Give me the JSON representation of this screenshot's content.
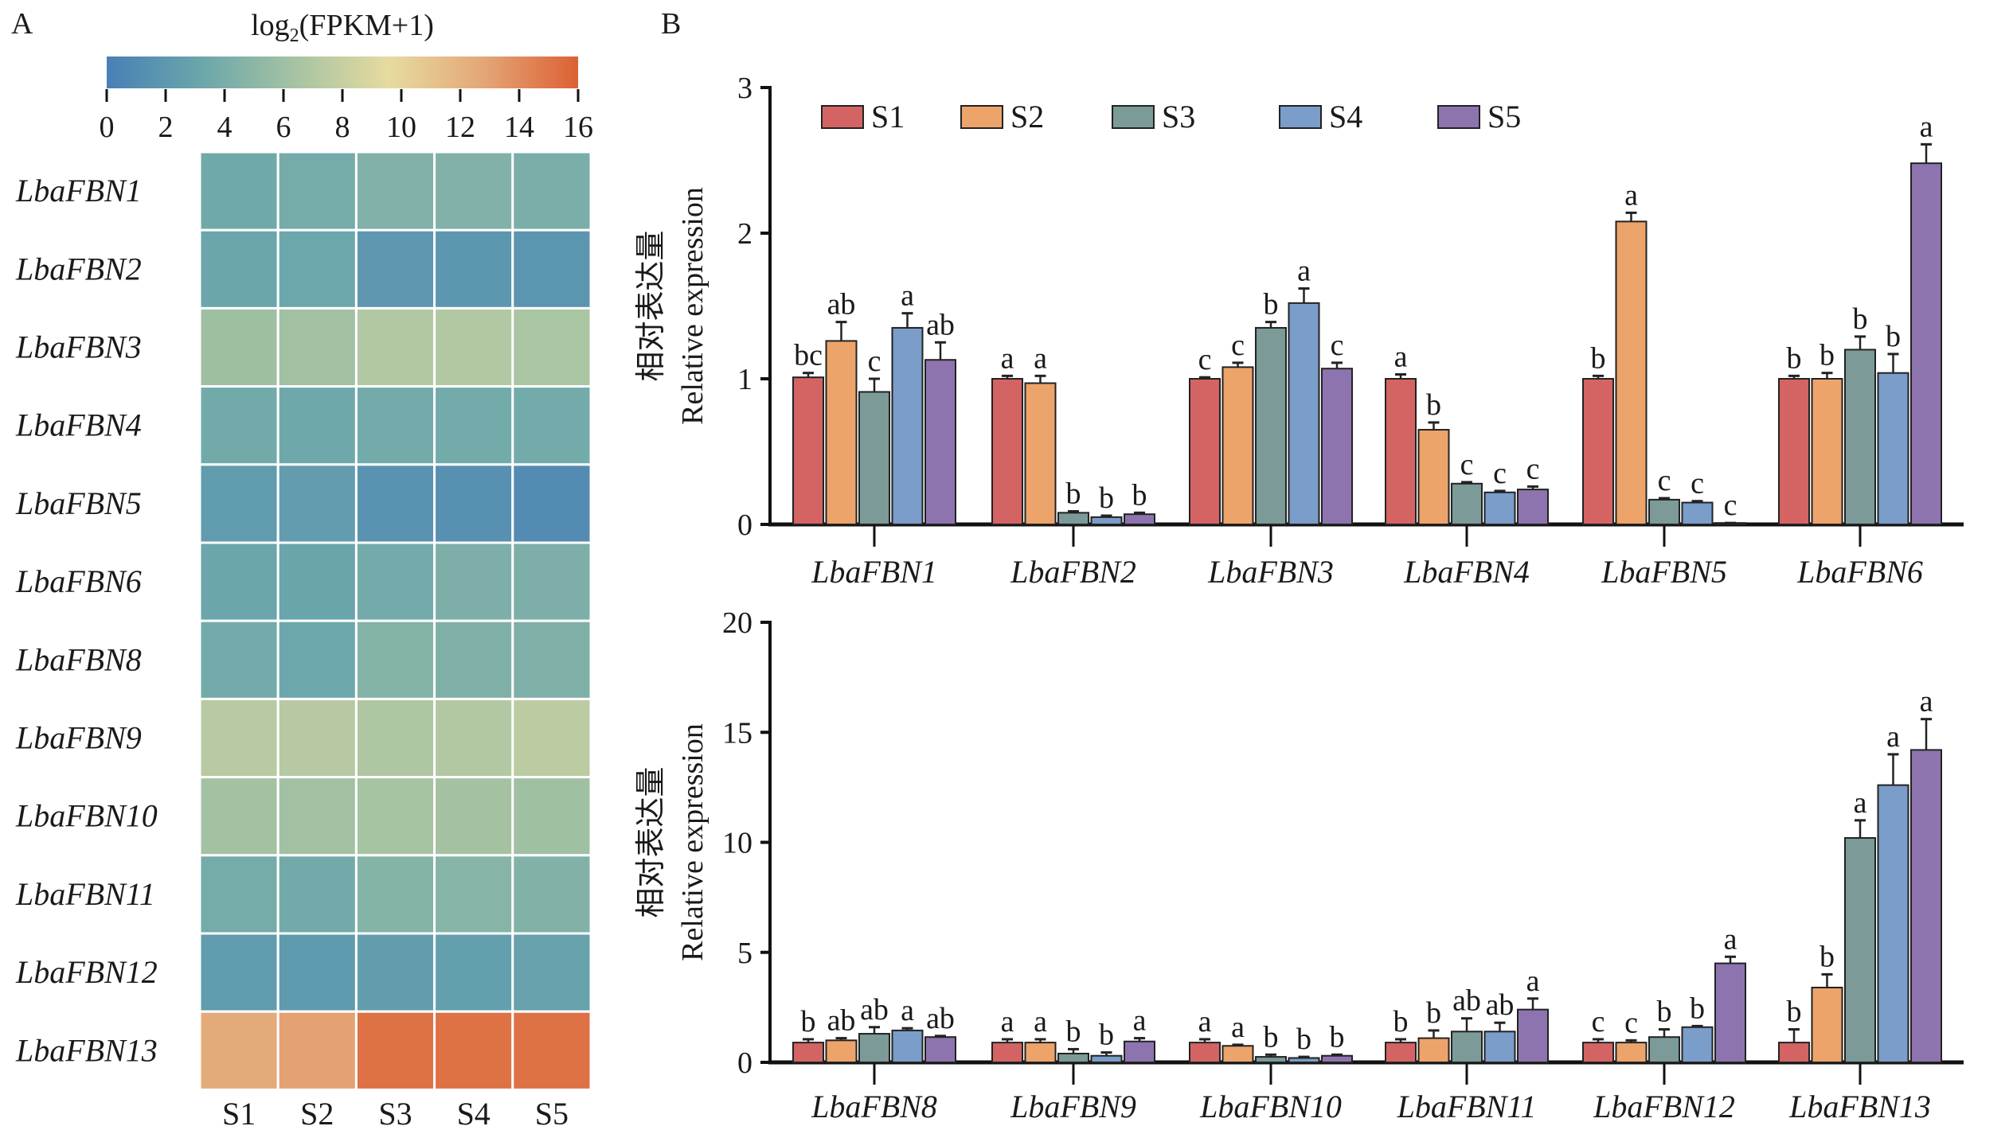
{
  "panel_a": {
    "label": "A",
    "chart_data": {
      "type": "heatmap",
      "colorbar_title": "log2(FPKM+1)",
      "colorbar_title_parts": {
        "pre": "log",
        "sub": "2",
        "post": "(FPKM+1)"
      },
      "colorbar_range": [
        0,
        16
      ],
      "colorbar_ticks": [
        "0",
        "2",
        "4",
        "6",
        "8",
        "10",
        "12",
        "14",
        "16"
      ],
      "colormap": [
        "#4a7fb6",
        "#6aa6ab",
        "#a6c3a2",
        "#e7dba0",
        "#e4a676",
        "#dc6034"
      ],
      "rows": [
        "LbaFBN1",
        "LbaFBN2",
        "LbaFBN3",
        "LbaFBN4",
        "LbaFBN5",
        "LbaFBN6",
        "LbaFBN8",
        "LbaFBN9",
        "LbaFBN10",
        "LbaFBN11",
        "LbaFBN12",
        "LbaFBN13"
      ],
      "columns": [
        "S1",
        "S2",
        "S3",
        "S4",
        "S5"
      ],
      "values": [
        [
          3.5,
          3.8,
          4.4,
          4.4,
          4.1
        ],
        [
          3.2,
          3.3,
          2.0,
          1.9,
          1.8
        ],
        [
          6.0,
          6.2,
          7.0,
          7.0,
          6.6
        ],
        [
          3.6,
          3.4,
          3.7,
          3.7,
          3.7
        ],
        [
          2.3,
          2.4,
          1.6,
          1.4,
          1.0
        ],
        [
          3.2,
          3.1,
          3.7,
          4.2,
          4.2
        ],
        [
          3.7,
          3.3,
          4.6,
          4.3,
          4.3
        ],
        [
          7.3,
          7.2,
          6.8,
          7.0,
          7.5
        ],
        [
          6.3,
          6.2,
          6.4,
          6.3,
          6.1
        ],
        [
          3.8,
          3.6,
          4.6,
          4.7,
          4.5
        ],
        [
          2.3,
          2.2,
          2.5,
          2.6,
          2.8
        ],
        [
          12.5,
          13.0,
          15.2,
          15.2,
          15.2
        ]
      ]
    }
  },
  "panel_b": {
    "label": "B",
    "legend": [
      {
        "name": "S1",
        "color": "#d46464"
      },
      {
        "name": "S2",
        "color": "#eda46a"
      },
      {
        "name": "S3",
        "color": "#7b9a98"
      },
      {
        "name": "S4",
        "color": "#7a9dc9"
      },
      {
        "name": "S5",
        "color": "#8d74ae"
      }
    ],
    "chart_data": [
      {
        "type": "bar",
        "ylabel_cn": "相对表达量",
        "ylabel": "Relative expression",
        "ylim": [
          0,
          3
        ],
        "yticks": [
          "0",
          "1",
          "2",
          "3"
        ],
        "categories": [
          "LbaFBN1",
          "LbaFBN2",
          "LbaFBN3",
          "LbaFBN4",
          "LbaFBN5",
          "LbaFBN6"
        ],
        "series": [
          {
            "name": "S1",
            "values": [
              1.01,
              1.0,
              1.0,
              1.0,
              1.0,
              1.0
            ],
            "errors": [
              0.03,
              0.02,
              0.01,
              0.03,
              0.02,
              0.02
            ],
            "letters": [
              "bc",
              "a",
              "c",
              "a",
              "b",
              "b"
            ]
          },
          {
            "name": "S2",
            "values": [
              1.26,
              0.97,
              1.08,
              0.65,
              2.08,
              1.0
            ],
            "errors": [
              0.13,
              0.05,
              0.03,
              0.05,
              0.06,
              0.04
            ],
            "letters": [
              "ab",
              "a",
              "c",
              "b",
              "a",
              "b"
            ]
          },
          {
            "name": "S3",
            "values": [
              0.91,
              0.08,
              1.35,
              0.28,
              0.17,
              1.2
            ],
            "errors": [
              0.09,
              0.01,
              0.04,
              0.01,
              0.01,
              0.09
            ],
            "letters": [
              "c",
              "b",
              "b",
              "c",
              "c",
              "b"
            ]
          },
          {
            "name": "S4",
            "values": [
              1.35,
              0.05,
              1.52,
              0.22,
              0.15,
              1.04
            ],
            "errors": [
              0.1,
              0.01,
              0.1,
              0.01,
              0.01,
              0.13
            ],
            "letters": [
              "a",
              "b",
              "a",
              "c",
              "c",
              "b"
            ]
          },
          {
            "name": "S5",
            "values": [
              1.13,
              0.07,
              1.07,
              0.24,
              0.01,
              2.48
            ],
            "errors": [
              0.12,
              0.01,
              0.04,
              0.02,
              0.0,
              0.13
            ],
            "letters": [
              "ab",
              "b",
              "c",
              "c",
              "c",
              "a"
            ]
          }
        ]
      },
      {
        "type": "bar",
        "ylabel_cn": "相对表达量",
        "ylabel": "Relative expression",
        "ylim": [
          0,
          20
        ],
        "yticks": [
          "0",
          "5",
          "10",
          "15",
          "20"
        ],
        "categories": [
          "LbaFBN8",
          "LbaFBN9",
          "LbaFBN10",
          "LbaFBN11",
          "LbaFBN12",
          "LbaFBN13"
        ],
        "series": [
          {
            "name": "S1",
            "values": [
              0.9,
              0.9,
              0.9,
              0.9,
              0.9,
              0.9
            ],
            "errors": [
              0.15,
              0.15,
              0.15,
              0.15,
              0.15,
              0.6
            ],
            "letters": [
              "b",
              "a",
              "a",
              "b",
              "c",
              "b"
            ]
          },
          {
            "name": "S2",
            "values": [
              1.0,
              0.9,
              0.75,
              1.1,
              0.9,
              3.4
            ],
            "errors": [
              0.1,
              0.15,
              0.05,
              0.35,
              0.1,
              0.6
            ],
            "letters": [
              "ab",
              "a",
              "a",
              "b",
              "c",
              "b"
            ]
          },
          {
            "name": "S3",
            "values": [
              1.3,
              0.4,
              0.25,
              1.4,
              1.15,
              10.2
            ],
            "errors": [
              0.3,
              0.2,
              0.1,
              0.6,
              0.35,
              0.8
            ],
            "letters": [
              "ab",
              "b",
              "b",
              "ab",
              "b",
              "a"
            ]
          },
          {
            "name": "S4",
            "values": [
              1.45,
              0.3,
              0.2,
              1.4,
              1.6,
              12.6
            ],
            "errors": [
              0.1,
              0.15,
              0.05,
              0.4,
              0.05,
              1.4
            ],
            "letters": [
              "a",
              "b",
              "b",
              "ab",
              "b",
              "a"
            ]
          },
          {
            "name": "S5",
            "values": [
              1.15,
              0.95,
              0.3,
              2.4,
              4.5,
              14.2
            ],
            "errors": [
              0.05,
              0.15,
              0.05,
              0.5,
              0.3,
              1.4
            ],
            "letters": [
              "ab",
              "a",
              "b",
              "a",
              "a",
              "a"
            ]
          }
        ]
      }
    ]
  }
}
